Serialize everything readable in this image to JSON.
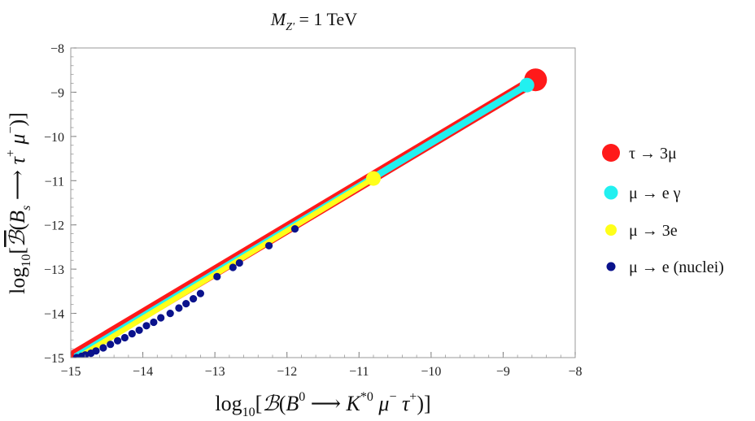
{
  "chart_data": {
    "type": "scatter",
    "title": "M_{Z'} = 1 TeV",
    "xlabel": "log₁₀[ℬ(B⁰ ⟶ K*⁰ μ⁻ τ⁺)]",
    "ylabel": "log₁₀[ℬ̄(B_s ⟶ τ⁺ μ⁻)]",
    "xlim": [
      -15,
      -8
    ],
    "ylim": [
      -15,
      -8
    ],
    "xticks": [
      -15,
      -14,
      -13,
      -12,
      -11,
      -10,
      -9,
      -8
    ],
    "yticks": [
      -15,
      -14,
      -13,
      -12,
      -11,
      -10,
      -9,
      -8
    ],
    "legend_position": "right",
    "series": [
      {
        "name": "τ → 3μ",
        "color": "#ff1a1a",
        "style": "band",
        "x_range": [
          -15,
          -8.55
        ],
        "band_center": [
          [
            -15,
            -15.0
          ],
          [
            -8.55,
            -8.72
          ]
        ],
        "band_halfwidth": 0.13
      },
      {
        "name": "μ → e γ",
        "color": "#22f0f0",
        "style": "band",
        "x_range": [
          -14.95,
          -8.67
        ],
        "band_center": [
          [
            -14.95,
            -15.0
          ],
          [
            -8.67,
            -8.84
          ]
        ],
        "band_halfwidth": 0.08
      },
      {
        "name": "μ → 3e",
        "color": "#ffff1a",
        "style": "band",
        "x_range": [
          -14.9,
          -10.8
        ],
        "band_center": [
          [
            -14.9,
            -15.0
          ],
          [
            -10.8,
            -10.95
          ]
        ],
        "band_halfwidth": 0.06
      },
      {
        "name": "μ → e (nuclei)",
        "color": "#0a128c",
        "style": "points",
        "points": [
          [
            -14.92,
            -15.0
          ],
          [
            -14.85,
            -14.97
          ],
          [
            -14.8,
            -14.94
          ],
          [
            -14.72,
            -14.9
          ],
          [
            -14.65,
            -14.85
          ],
          [
            -14.55,
            -14.78
          ],
          [
            -14.45,
            -14.7
          ],
          [
            -14.35,
            -14.62
          ],
          [
            -14.25,
            -14.55
          ],
          [
            -14.15,
            -14.46
          ],
          [
            -14.05,
            -14.38
          ],
          [
            -13.95,
            -14.28
          ],
          [
            -13.85,
            -14.2
          ],
          [
            -13.75,
            -14.1
          ],
          [
            -13.62,
            -14.0
          ],
          [
            -13.5,
            -13.88
          ],
          [
            -13.4,
            -13.78
          ],
          [
            -13.3,
            -13.67
          ],
          [
            -13.2,
            -13.55
          ],
          [
            -12.97,
            -13.17
          ],
          [
            -12.75,
            -12.96
          ],
          [
            -12.66,
            -12.86
          ],
          [
            -12.25,
            -12.47
          ],
          [
            -11.89,
            -12.09
          ]
        ]
      }
    ]
  }
}
